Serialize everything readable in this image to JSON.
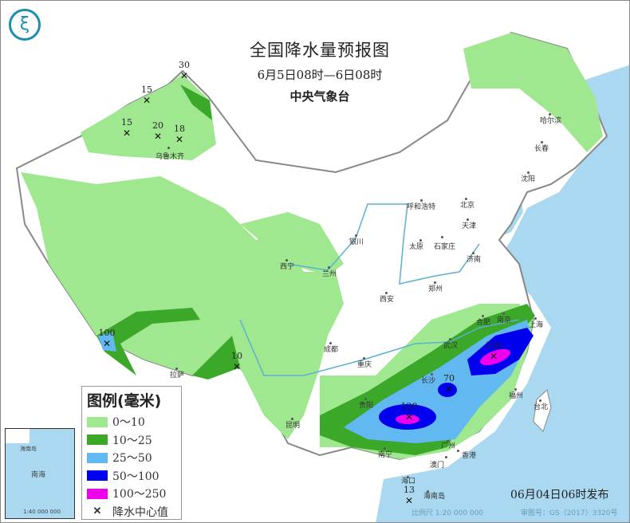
{
  "header": {
    "title": "全国降水量预报图",
    "period": "6月5日08时—6日08时",
    "issuer": "中央气象台",
    "logo_icon": "cma-logo-icon"
  },
  "legend": {
    "title": "图例(毫米)",
    "items": [
      {
        "label": "0～10",
        "color": "#a0e890"
      },
      {
        "label": "10～25",
        "color": "#3ca82a"
      },
      {
        "label": "25～50",
        "color": "#62b8f0"
      },
      {
        "label": "50～100",
        "color": "#0000ee"
      },
      {
        "label": "100～250",
        "color": "#ee00ee"
      }
    ],
    "center_label": "降水中心值",
    "center_icon": "x-mark-icon"
  },
  "cities": [
    "哈尔滨",
    "长春",
    "沈阳",
    "北京",
    "天津",
    "呼和浩特",
    "银川",
    "太原",
    "石家庄",
    "济南",
    "兰州",
    "西宁",
    "西安",
    "郑州",
    "成都",
    "重庆",
    "武汉",
    "合肥",
    "南京",
    "上海",
    "长沙",
    "贵阳",
    "昆明",
    "南宁",
    "广州",
    "香港",
    "澳门",
    "福州",
    "台北",
    "海口",
    "海南岛",
    "拉萨",
    "乌鲁木齐"
  ],
  "rain_centers": [
    "30",
    "15",
    "15",
    "20",
    "18",
    "100",
    "10",
    "120",
    "70",
    "130",
    "13"
  ],
  "inset": {
    "sea": "南海",
    "island": "海南岛",
    "scale": "1:40 000 000"
  },
  "footer": {
    "issued": "06月04日06时发布",
    "scale": "比例尺 1:20 000 000",
    "approval": "审图号：GS（2017）3320号"
  },
  "colors": {
    "sea": "#a9d8f0",
    "border": "#888888",
    "river": "#5ab0d0"
  }
}
